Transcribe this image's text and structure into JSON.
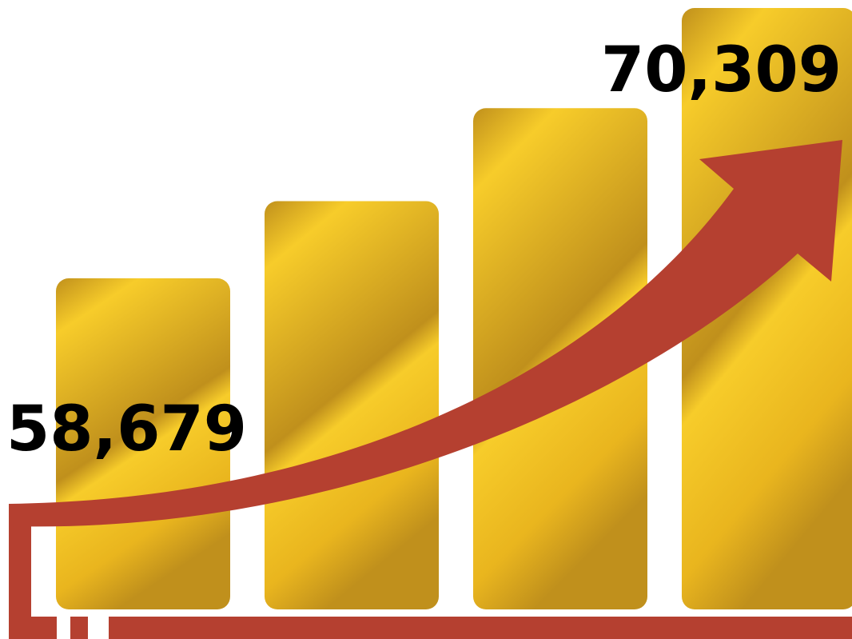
{
  "chart_data": {
    "type": "bar",
    "title": "",
    "xlabel": "",
    "ylabel": "",
    "categories": [
      "",
      "",
      "",
      ""
    ],
    "values": [
      58679,
      62000,
      66000,
      70309
    ],
    "ylim": [
      50000,
      70309
    ],
    "grid": false,
    "legend": "none",
    "data_labels": [
      {
        "bar_index": 0,
        "text": "58,679"
      },
      {
        "bar_index": 3,
        "text": "70,309"
      }
    ],
    "trend_arrow": true,
    "colors": {
      "bar_light": "#f7cc2a",
      "bar_mid": "#e9b51e",
      "bar_dark": "#c0901c",
      "arrow": "#b54030",
      "label": "#000000"
    }
  }
}
